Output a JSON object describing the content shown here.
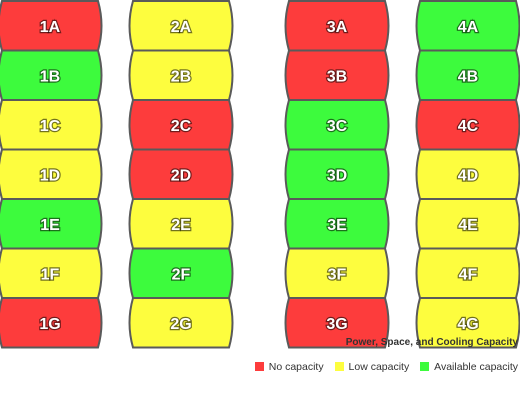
{
  "colors": {
    "no_capacity": "#fd3c3c",
    "low_capacity": "#fdfd3e",
    "available_capacity": "#3dfb3d",
    "outline": "#5a5a5a"
  },
  "columns": [
    {
      "racks": [
        {
          "label": "1A",
          "status": "no_capacity"
        },
        {
          "label": "1B",
          "status": "available_capacity"
        },
        {
          "label": "1C",
          "status": "low_capacity"
        },
        {
          "label": "1D",
          "status": "low_capacity"
        },
        {
          "label": "1E",
          "status": "available_capacity"
        },
        {
          "label": "1F",
          "status": "low_capacity"
        },
        {
          "label": "1G",
          "status": "no_capacity"
        }
      ]
    },
    {
      "racks": [
        {
          "label": "2A",
          "status": "low_capacity"
        },
        {
          "label": "2B",
          "status": "low_capacity"
        },
        {
          "label": "2C",
          "status": "no_capacity"
        },
        {
          "label": "2D",
          "status": "no_capacity"
        },
        {
          "label": "2E",
          "status": "low_capacity"
        },
        {
          "label": "2F",
          "status": "available_capacity"
        },
        {
          "label": "2G",
          "status": "low_capacity"
        }
      ]
    },
    {
      "racks": [
        {
          "label": "3A",
          "status": "no_capacity"
        },
        {
          "label": "3B",
          "status": "no_capacity"
        },
        {
          "label": "3C",
          "status": "available_capacity"
        },
        {
          "label": "3D",
          "status": "available_capacity"
        },
        {
          "label": "3E",
          "status": "available_capacity"
        },
        {
          "label": "3F",
          "status": "low_capacity"
        },
        {
          "label": "3G",
          "status": "no_capacity"
        }
      ]
    },
    {
      "racks": [
        {
          "label": "4A",
          "status": "available_capacity"
        },
        {
          "label": "4B",
          "status": "available_capacity"
        },
        {
          "label": "4C",
          "status": "no_capacity"
        },
        {
          "label": "4D",
          "status": "low_capacity"
        },
        {
          "label": "4E",
          "status": "low_capacity"
        },
        {
          "label": "4F",
          "status": "low_capacity"
        },
        {
          "label": "4G",
          "status": "low_capacity"
        }
      ]
    }
  ],
  "legend": {
    "title": "Power, Space, and Cooling Capacity",
    "items": [
      {
        "key": "no_capacity",
        "label": "No capacity"
      },
      {
        "key": "low_capacity",
        "label": "Low capacity"
      },
      {
        "key": "available_capacity",
        "label": "Available capacity"
      }
    ]
  }
}
